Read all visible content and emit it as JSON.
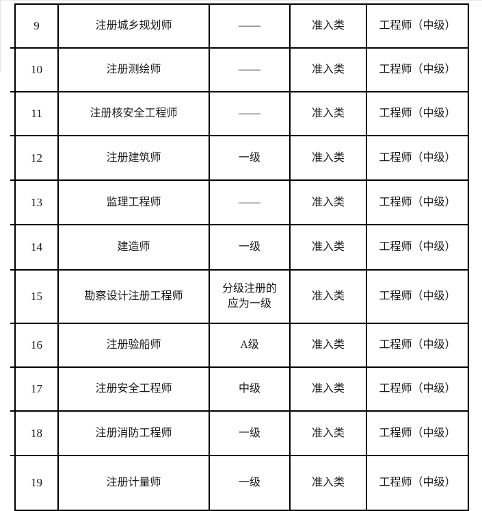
{
  "page": {
    "background": "#ffffff",
    "edge_line_color": "#e8e8e8"
  },
  "table": {
    "border_color": "#000000",
    "text_color": "#1a1a1a",
    "rows": [
      {
        "no": "9",
        "name": "注册城乡规划师",
        "level": "——",
        "category": "准入类",
        "title": "工程师（中级）"
      },
      {
        "no": "10",
        "name": "注册测绘师",
        "level": "——",
        "category": "准入类",
        "title": "工程师（中级）"
      },
      {
        "no": "11",
        "name": "注册核安全工程师",
        "level": "——",
        "category": "准入类",
        "title": "工程师（中级）"
      },
      {
        "no": "12",
        "name": "注册建筑师",
        "level": "一级",
        "category": "准入类",
        "title": "工程师（中级）"
      },
      {
        "no": "13",
        "name": "监理工程师",
        "level": "——",
        "category": "准入类",
        "title": "工程师（中级）"
      },
      {
        "no": "14",
        "name": "建造师",
        "level": "一级",
        "category": "准入类",
        "title": "工程师（中级）"
      },
      {
        "no": "15",
        "name": "勘察设计注册工程师",
        "level": "分级注册的\n应为一级",
        "category": "准入类",
        "title": "工程师（中级）"
      },
      {
        "no": "16",
        "name": "注册验船师",
        "level": "A级",
        "category": "准入类",
        "title": "工程师（中级）"
      },
      {
        "no": "17",
        "name": "注册安全工程师",
        "level": "中级",
        "category": "准入类",
        "title": "工程师（中级）"
      },
      {
        "no": "18",
        "name": "注册消防工程师",
        "level": "一级",
        "category": "准入类",
        "title": "工程师（中级）"
      },
      {
        "no": "19",
        "name": "注册计量师",
        "level": "一级",
        "category": "准入类",
        "title": "工程师（中级）"
      }
    ]
  }
}
